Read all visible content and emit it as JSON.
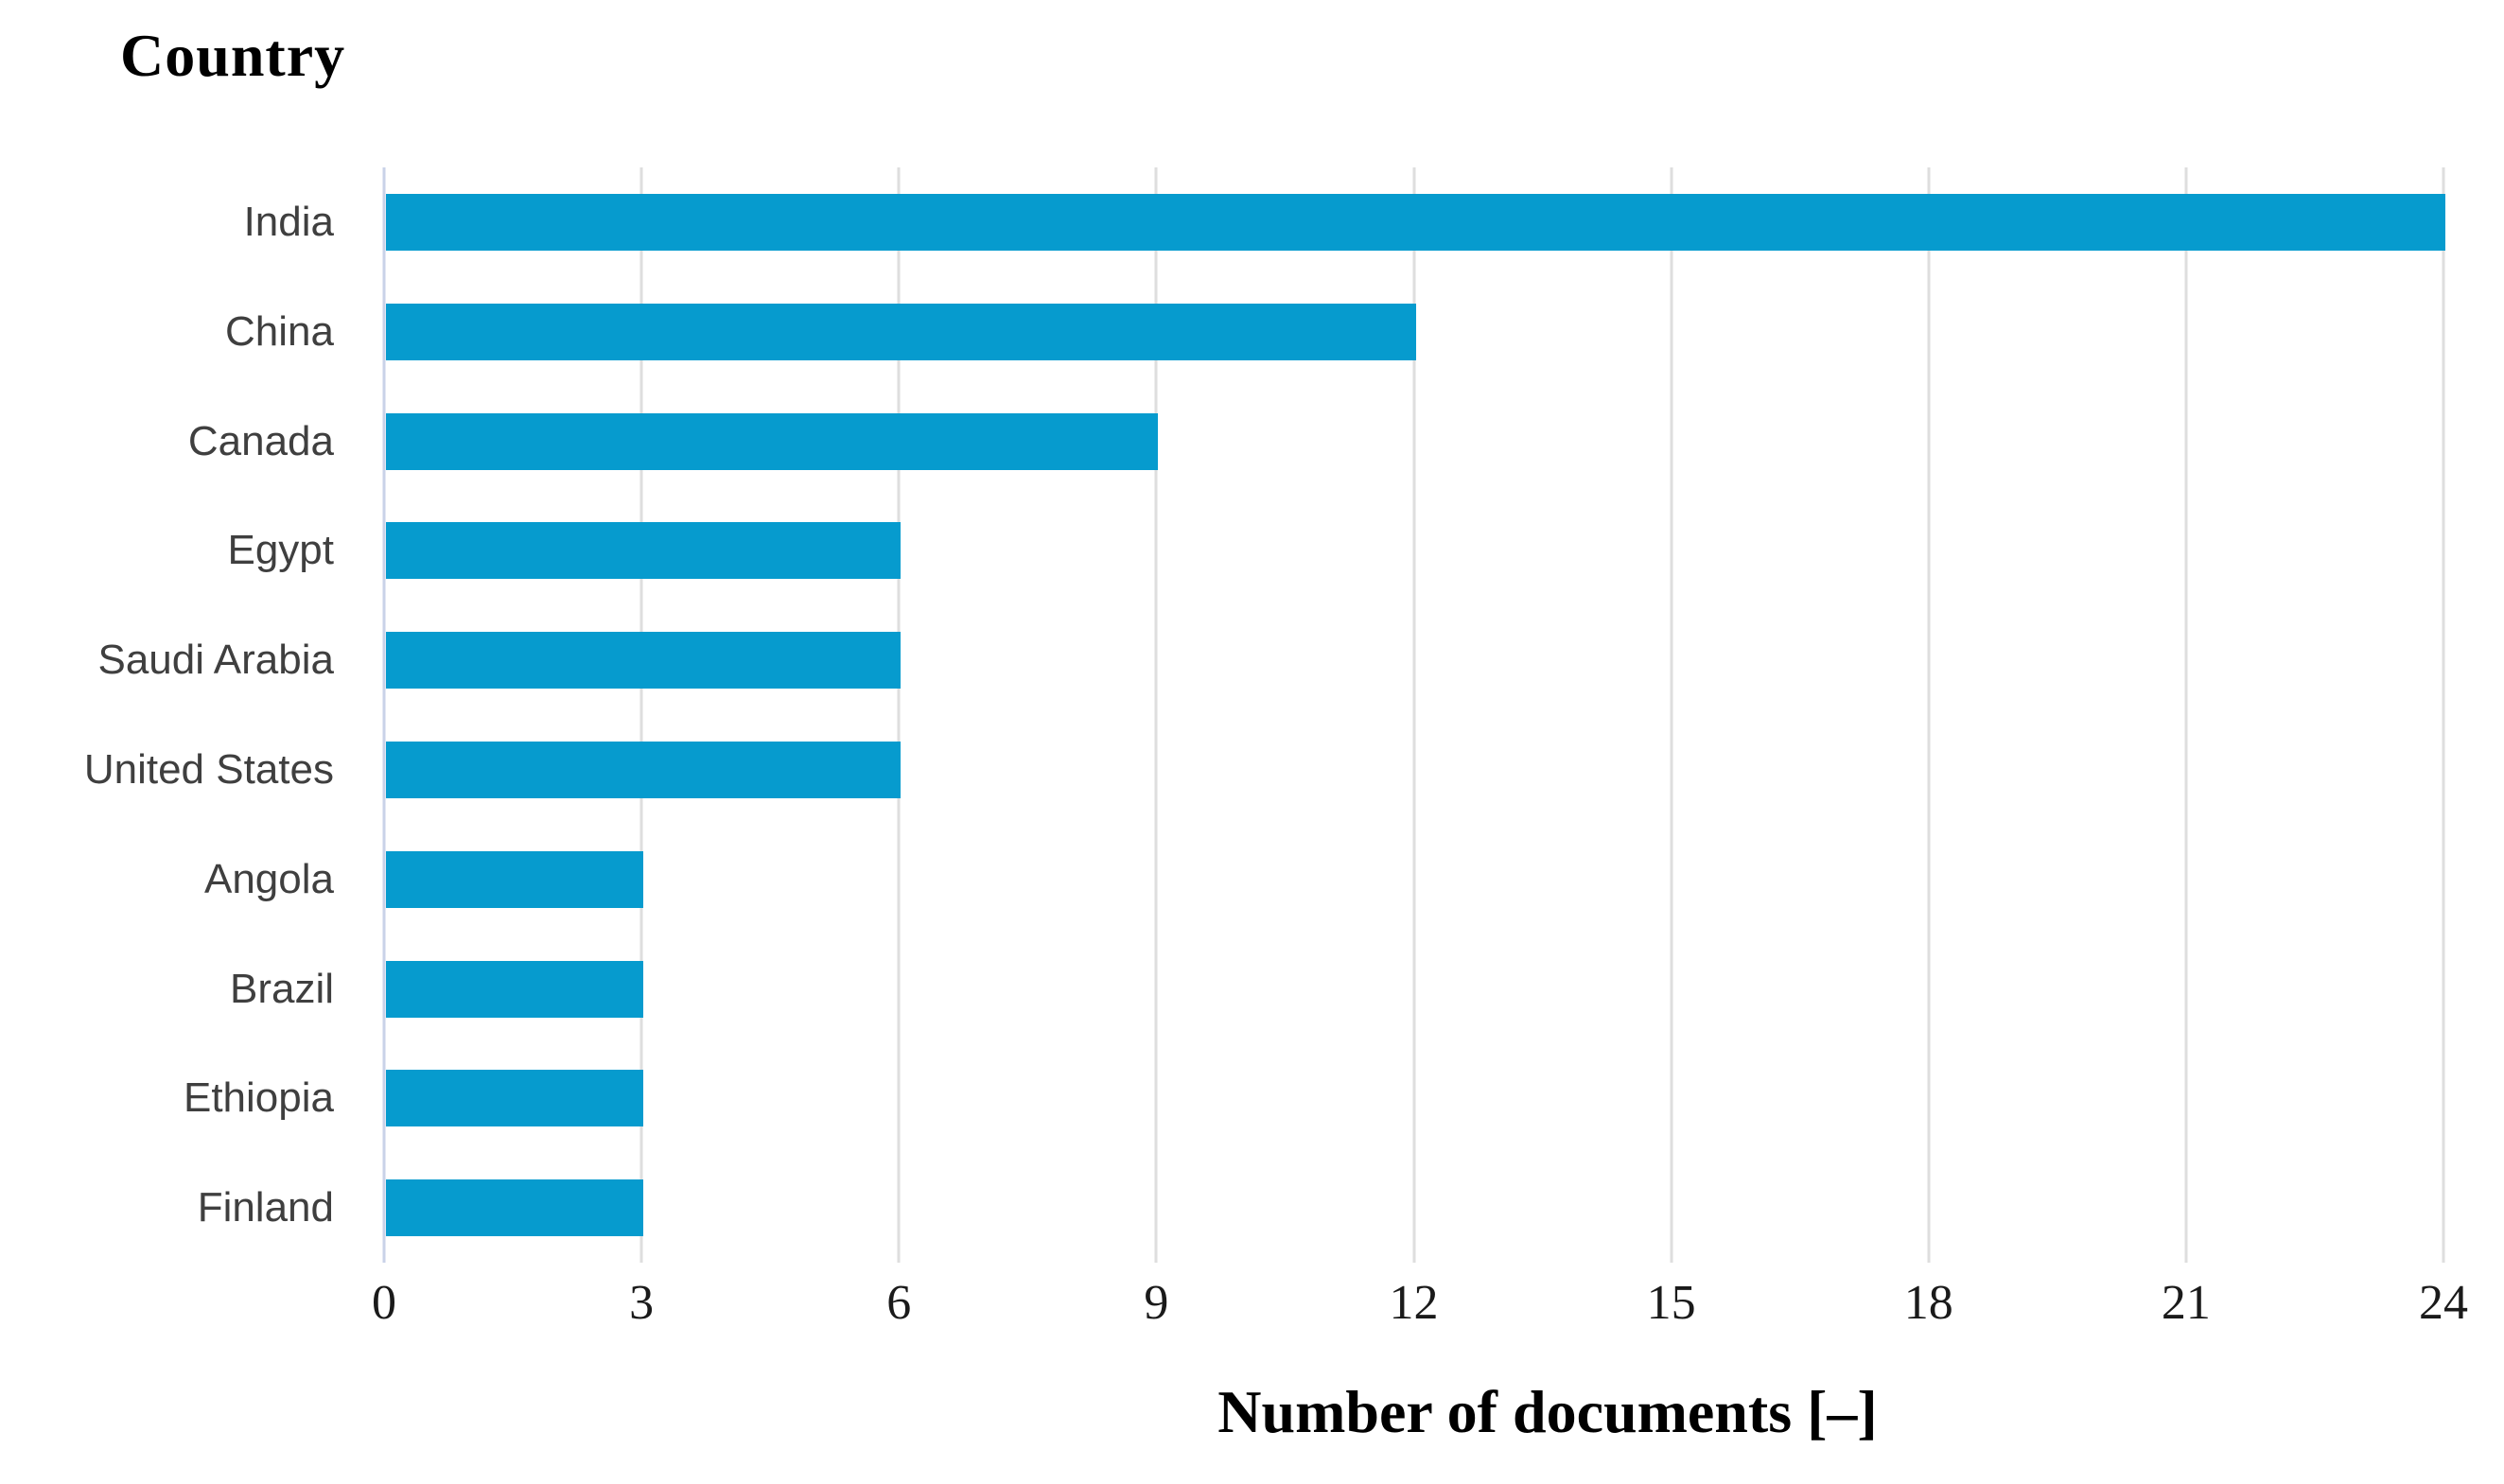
{
  "chart_data": {
    "type": "bar",
    "orientation": "horizontal",
    "title": "Country",
    "xlabel": "Number of documents [–]",
    "categories": [
      "India",
      "China",
      "Canada",
      "Egypt",
      "Saudi Arabia",
      "United States",
      "Angola",
      "Brazil",
      "Ethiopia",
      "Finland"
    ],
    "values": [
      24,
      12,
      9,
      6,
      6,
      6,
      3,
      3,
      3,
      3
    ],
    "xlim": [
      0,
      24
    ],
    "xticks": [
      0,
      3,
      6,
      9,
      12,
      15,
      18,
      21,
      24
    ],
    "grid": true,
    "legend": false,
    "bar_color": "#069bce",
    "gridline_color": "#dedede",
    "zero_axis_color": "#c9d2e8",
    "category_label_color": "#3f3f3f",
    "tick_label_color": "#1a1a1a",
    "title_color": "#000000"
  }
}
